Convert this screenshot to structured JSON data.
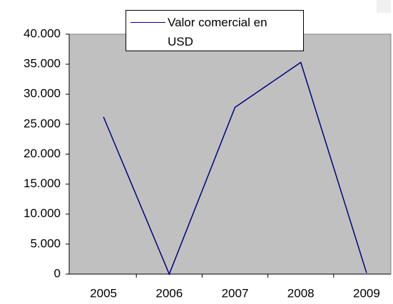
{
  "chart_data": {
    "type": "line",
    "categories": [
      "2005",
      "2006",
      "2007",
      "2008",
      "2009"
    ],
    "series": [
      {
        "name": "Valor comercial en USD",
        "color": "#000080",
        "values": [
          26200,
          0,
          27800,
          35300,
          200
        ]
      }
    ],
    "ylim": [
      0,
      40000
    ],
    "yticks": [
      0,
      {
        "value": 5000,
        "label": "5.000"
      },
      {
        "value": 10000,
        "label": "10.000"
      },
      {
        "value": 15000,
        "label": "15.000"
      },
      {
        "value": 20000,
        "label": "20.000"
      },
      {
        "value": 25000,
        "label": "25.000"
      },
      {
        "value": 30000,
        "label": "30.000"
      },
      {
        "value": 35000,
        "label": "35.000"
      },
      {
        "value": 40000,
        "label": "40.000"
      }
    ],
    "grid": false,
    "plot_background": "#c0c0c0",
    "legend": "top"
  }
}
